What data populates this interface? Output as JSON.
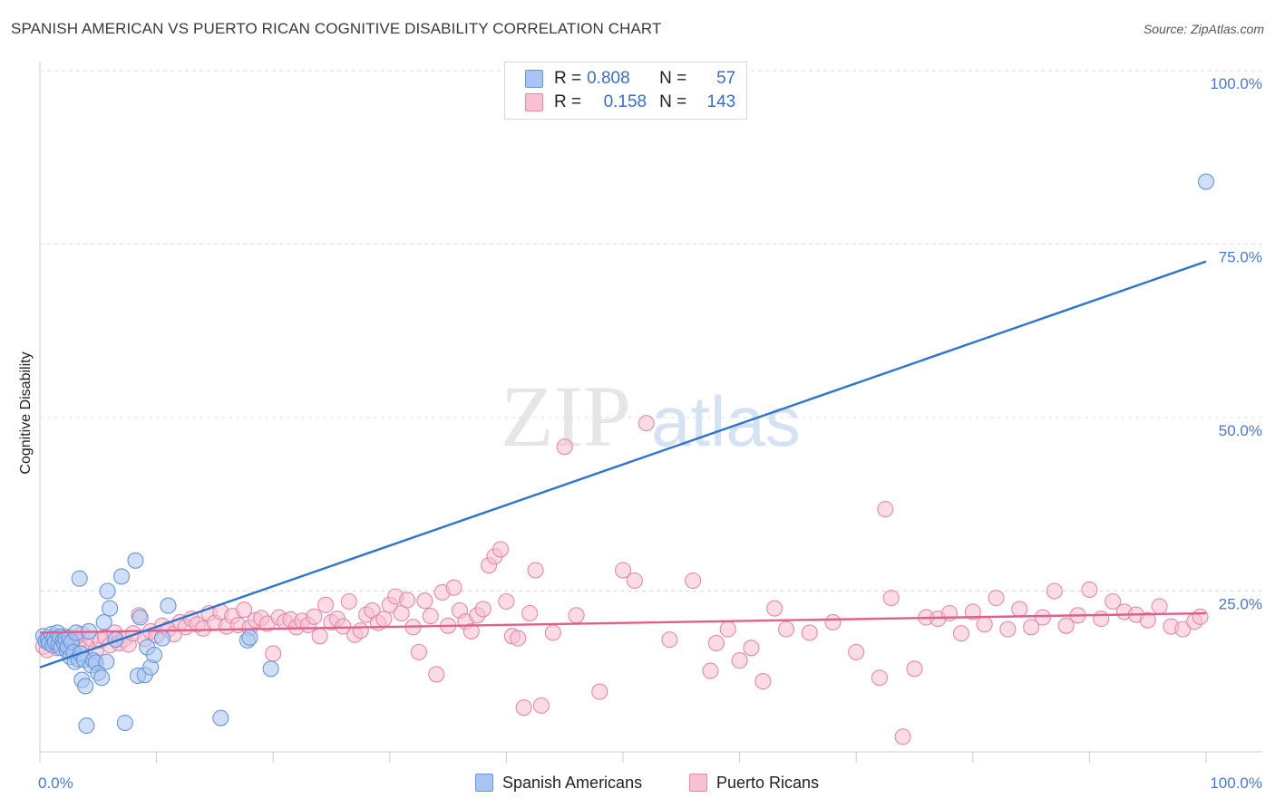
{
  "title": "SPANISH AMERICAN VS PUERTO RICAN COGNITIVE DISABILITY CORRELATION CHART",
  "source": "Source: ZipAtlas.com",
  "watermark": {
    "zip": "ZIP",
    "atlas": "atlas"
  },
  "legend": {
    "rows": [
      {
        "r_label": "R =",
        "r_value": "0.808",
        "n_label": "N =",
        "n_value": "57",
        "color": "#a8c4f0",
        "border": "#6a96dc"
      },
      {
        "r_label": "R =",
        "r_value": "0.158",
        "n_label": "N =",
        "n_value": "143",
        "color": "#f8c0d2",
        "border": "#e48aa8"
      }
    ]
  },
  "bottom_legend": [
    {
      "label": "Spanish Americans",
      "color": "#a8c4f0",
      "border": "#6a96dc"
    },
    {
      "label": "Puerto Ricans",
      "color": "#f8c0d2",
      "border": "#e48aa8"
    }
  ],
  "chart_data": {
    "type": "scatter",
    "ylabel": "Cognitive Disability",
    "xlabel": "",
    "xlim": [
      0,
      100
    ],
    "ylim": [
      0,
      100
    ],
    "x_tick_labels": [
      "0.0%",
      "100.0%"
    ],
    "y_tick_labels": [
      "100.0%",
      "75.0%",
      "50.0%",
      "25.0%"
    ],
    "y_ticks": [
      100,
      75,
      50,
      25
    ],
    "grid": "horizontal dashed",
    "series": [
      {
        "name": "Spanish Americans",
        "color": "#6a96dc",
        "fill": "#a8c4f0",
        "line_color": "#2e74d0",
        "trend": {
          "x": [
            0,
            100
          ],
          "y": [
            14.0,
            72.5
          ]
        },
        "points": [
          [
            0.3,
            18.5
          ],
          [
            0.5,
            17.8
          ],
          [
            0.7,
            18.0
          ],
          [
            0.8,
            17.5
          ],
          [
            1.0,
            18.8
          ],
          [
            1.1,
            17.2
          ],
          [
            1.2,
            18.2
          ],
          [
            1.3,
            17.6
          ],
          [
            1.5,
            19.0
          ],
          [
            1.6,
            17.3
          ],
          [
            1.7,
            18.4
          ],
          [
            1.8,
            16.8
          ],
          [
            2.0,
            17.9
          ],
          [
            2.1,
            17.4
          ],
          [
            2.2,
            18.1
          ],
          [
            2.3,
            16.5
          ],
          [
            2.4,
            17.0
          ],
          [
            2.5,
            18.3
          ],
          [
            2.6,
            15.5
          ],
          [
            2.7,
            17.7
          ],
          [
            2.9,
            16.2
          ],
          [
            3.0,
            14.8
          ],
          [
            3.1,
            19.0
          ],
          [
            3.3,
            15.2
          ],
          [
            3.4,
            26.8
          ],
          [
            3.5,
            16.0
          ],
          [
            3.6,
            12.2
          ],
          [
            3.8,
            15.1
          ],
          [
            3.9,
            11.3
          ],
          [
            4.0,
            5.6
          ],
          [
            4.2,
            19.2
          ],
          [
            4.4,
            14.3
          ],
          [
            4.6,
            15.0
          ],
          [
            4.8,
            14.7
          ],
          [
            5.0,
            13.2
          ],
          [
            5.3,
            12.5
          ],
          [
            5.5,
            20.5
          ],
          [
            5.7,
            14.8
          ],
          [
            5.8,
            25.0
          ],
          [
            6.0,
            22.5
          ],
          [
            6.5,
            18.0
          ],
          [
            7.0,
            27.1
          ],
          [
            7.3,
            6.0
          ],
          [
            8.2,
            29.4
          ],
          [
            8.4,
            12.8
          ],
          [
            8.6,
            21.2
          ],
          [
            9.0,
            12.9
          ],
          [
            9.2,
            16.9
          ],
          [
            9.5,
            14.0
          ],
          [
            9.8,
            15.8
          ],
          [
            10.5,
            18.2
          ],
          [
            11.0,
            22.9
          ],
          [
            15.5,
            6.7
          ],
          [
            17.8,
            17.9
          ],
          [
            18.0,
            18.3
          ],
          [
            19.8,
            13.8
          ],
          [
            100.0,
            84.0
          ]
        ]
      },
      {
        "name": "Puerto Ricans",
        "color": "#e48aa8",
        "fill": "#f8c0d2",
        "line_color": "#e0608a",
        "trend": {
          "x": [
            0,
            100
          ],
          "y": [
            19.0,
            21.8
          ]
        },
        "points": [
          [
            0.3,
            17.0
          ],
          [
            0.6,
            16.5
          ],
          [
            0.9,
            18.0
          ],
          [
            1.2,
            17.5
          ],
          [
            1.5,
            16.8
          ],
          [
            1.8,
            17.8
          ],
          [
            2.1,
            18.5
          ],
          [
            2.4,
            17.2
          ],
          [
            2.7,
            16.9
          ],
          [
            3.0,
            18.2
          ],
          [
            3.3,
            17.6
          ],
          [
            3.6,
            18.8
          ],
          [
            4.0,
            17.0
          ],
          [
            4.4,
            18.1
          ],
          [
            4.8,
            16.5
          ],
          [
            5.2,
            17.9
          ],
          [
            5.6,
            18.4
          ],
          [
            6.0,
            17.2
          ],
          [
            6.4,
            19.0
          ],
          [
            6.8,
            17.5
          ],
          [
            7.2,
            18.0
          ],
          [
            7.6,
            17.3
          ],
          [
            8.0,
            18.9
          ],
          [
            8.5,
            21.5
          ],
          [
            9.0,
            18.1
          ],
          [
            9.5,
            19.2
          ],
          [
            10.0,
            18.6
          ],
          [
            10.5,
            20.0
          ],
          [
            11.0,
            19.5
          ],
          [
            11.5,
            18.8
          ],
          [
            12.0,
            20.5
          ],
          [
            12.5,
            19.8
          ],
          [
            13.0,
            21.0
          ],
          [
            13.5,
            20.2
          ],
          [
            14.0,
            19.6
          ],
          [
            14.5,
            21.8
          ],
          [
            15.0,
            20.4
          ],
          [
            15.5,
            22.0
          ],
          [
            16.0,
            19.9
          ],
          [
            16.5,
            21.4
          ],
          [
            17.0,
            20.1
          ],
          [
            17.5,
            22.3
          ],
          [
            18.0,
            19.7
          ],
          [
            18.5,
            20.8
          ],
          [
            19.0,
            21.1
          ],
          [
            19.5,
            20.3
          ],
          [
            20.0,
            16.0
          ],
          [
            20.5,
            21.2
          ],
          [
            21.0,
            20.6
          ],
          [
            21.5,
            20.9
          ],
          [
            22.0,
            19.8
          ],
          [
            22.5,
            20.7
          ],
          [
            23.0,
            20.1
          ],
          [
            23.5,
            21.3
          ],
          [
            24.0,
            18.5
          ],
          [
            24.5,
            23.0
          ],
          [
            25.0,
            20.5
          ],
          [
            25.5,
            21.0
          ],
          [
            26.0,
            19.9
          ],
          [
            26.5,
            23.5
          ],
          [
            27.0,
            18.7
          ],
          [
            27.5,
            19.3
          ],
          [
            28.0,
            21.6
          ],
          [
            28.5,
            22.2
          ],
          [
            29.0,
            20.4
          ],
          [
            29.5,
            21.0
          ],
          [
            30.0,
            23.0
          ],
          [
            30.5,
            24.2
          ],
          [
            31.0,
            21.8
          ],
          [
            31.5,
            23.7
          ],
          [
            32.0,
            19.8
          ],
          [
            32.5,
            16.2
          ],
          [
            33.0,
            23.6
          ],
          [
            33.5,
            21.4
          ],
          [
            34.0,
            13.0
          ],
          [
            34.5,
            24.8
          ],
          [
            35.0,
            20.0
          ],
          [
            35.5,
            25.5
          ],
          [
            36.0,
            22.2
          ],
          [
            36.5,
            20.6
          ],
          [
            37.0,
            19.2
          ],
          [
            37.5,
            21.5
          ],
          [
            38.0,
            22.4
          ],
          [
            38.5,
            28.7
          ],
          [
            39.0,
            30.0
          ],
          [
            39.5,
            31.0
          ],
          [
            40.0,
            23.5
          ],
          [
            40.5,
            18.5
          ],
          [
            41.0,
            18.2
          ],
          [
            41.5,
            8.2
          ],
          [
            42.0,
            21.8
          ],
          [
            42.5,
            28.0
          ],
          [
            43.0,
            8.5
          ],
          [
            44.0,
            19.0
          ],
          [
            45.0,
            45.8
          ],
          [
            46.0,
            21.5
          ],
          [
            48.0,
            10.5
          ],
          [
            50.0,
            28.0
          ],
          [
            51.0,
            26.5
          ],
          [
            54.0,
            18.0
          ],
          [
            56.0,
            26.5
          ],
          [
            58.0,
            17.5
          ],
          [
            59.0,
            19.5
          ],
          [
            60.0,
            15.0
          ],
          [
            61.0,
            16.8
          ],
          [
            62.0,
            12.0
          ],
          [
            63.0,
            22.5
          ],
          [
            64.0,
            19.5
          ],
          [
            66.0,
            19.0
          ],
          [
            68.0,
            20.5
          ],
          [
            70.0,
            16.2
          ],
          [
            72.0,
            12.5
          ],
          [
            72.5,
            36.8
          ],
          [
            73.0,
            24.0
          ],
          [
            74.0,
            4.0
          ],
          [
            75.0,
            13.8
          ],
          [
            76.0,
            21.2
          ],
          [
            77.0,
            21.0
          ],
          [
            78.0,
            21.8
          ],
          [
            79.0,
            18.9
          ],
          [
            80.0,
            22.0
          ],
          [
            81.0,
            20.2
          ],
          [
            82.0,
            24.0
          ],
          [
            83.0,
            19.5
          ],
          [
            84.0,
            22.4
          ],
          [
            85.0,
            19.8
          ],
          [
            86.0,
            21.2
          ],
          [
            87.0,
            25.0
          ],
          [
            88.0,
            20.0
          ],
          [
            89.0,
            21.5
          ],
          [
            90.0,
            25.2
          ],
          [
            91.0,
            21.0
          ],
          [
            92.0,
            23.5
          ],
          [
            93.0,
            22.0
          ],
          [
            94.0,
            21.6
          ],
          [
            95.0,
            20.8
          ],
          [
            96.0,
            22.8
          ],
          [
            97.0,
            19.9
          ],
          [
            98.0,
            19.5
          ],
          [
            99.0,
            20.6
          ],
          [
            99.5,
            21.3
          ],
          [
            52.0,
            49.2
          ],
          [
            57.5,
            13.5
          ]
        ]
      }
    ]
  }
}
